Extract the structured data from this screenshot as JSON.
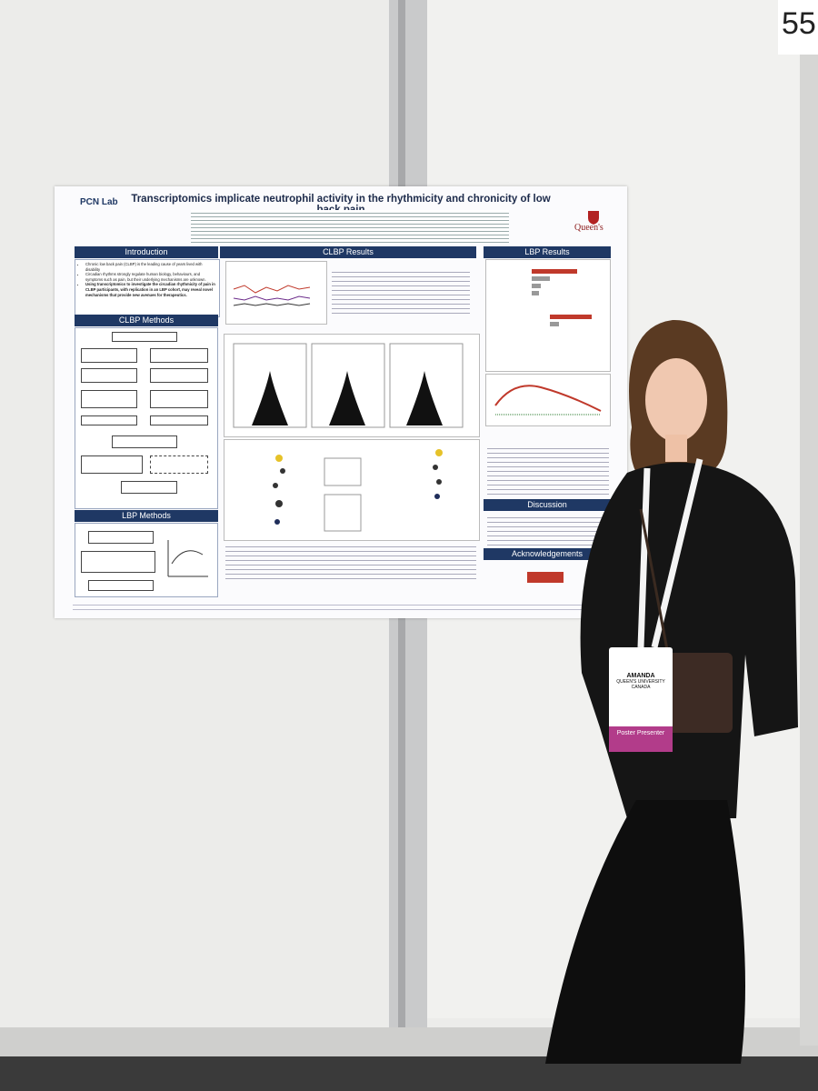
{
  "booth_number": "55",
  "poster": {
    "title": "Transcriptomics implicate neutrophil activity in the rhythmicity and chronicity of low back pain",
    "logo_left": "PCN Lab",
    "logo_right": "Queen's",
    "sections": {
      "introduction": {
        "heading": "Introduction",
        "bullets": [
          "Chronic low back pain (CLBP) is the leading cause of years lived with disability",
          "Circadian rhythms strongly regulate human biology, behaviours, and symptoms such as pain, but their underlying mechanisms are unknown.",
          "Using transcriptomics to investigate the circadian rhythmicity of pain in CLBP participants, with replication in an LBP cohort, may reveal novel mechanisms that provide new avenues for therapeutics."
        ]
      },
      "clbp_methods": {
        "heading": "CLBP Methods"
      },
      "lbp_methods": {
        "heading": "LBP Methods"
      },
      "clbp_results": {
        "heading": "CLBP Results"
      },
      "lbp_results": {
        "heading": "LBP Results"
      },
      "discussion": {
        "heading": "Discussion"
      },
      "acknowledgements": {
        "heading": "Acknowledgements"
      }
    }
  },
  "badge": {
    "name": "AMANDA",
    "affiliation": "QUEEN'S UNIVERSITY",
    "country": "CANADA",
    "role": "Poster Presenter"
  }
}
